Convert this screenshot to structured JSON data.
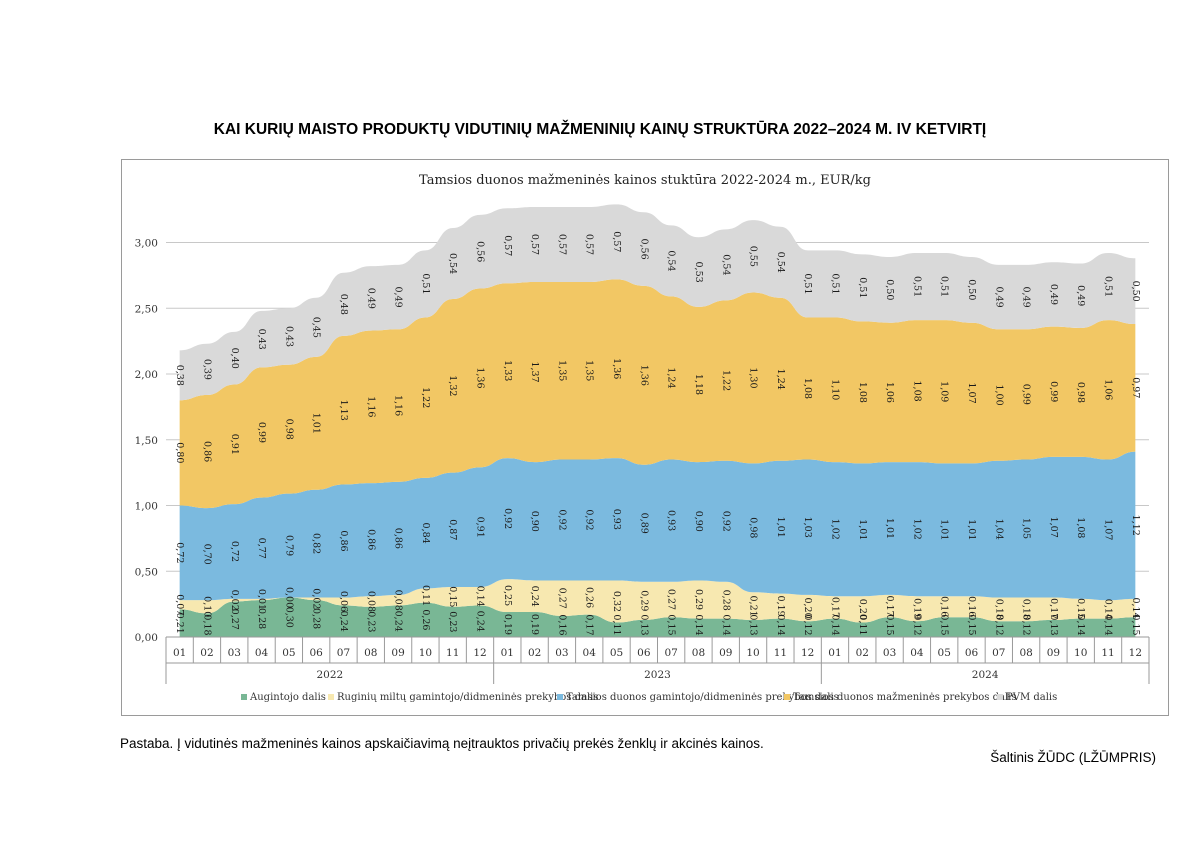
{
  "page": {
    "title": "KAI KURIŲ MAISTO PRODUKTŲ VIDUTINIŲ MAŽMENINIŲ KAINŲ STRUKTŪRA 2022–2024 M. IV KETVIRTĮ",
    "note": "Pastaba. Į vidutinės mažmeninės kainos apskaičiavimą neįtrauktos privačių prekės ženklų ir akcinės kainos.",
    "source": "Šaltinis ŽŪDC (LŽŪMPRIS)"
  },
  "chart_data": {
    "type": "area",
    "stacked": true,
    "title": "Tamsios duonos mažmeninės  kainos stuktūra  2022-2024 m., EUR/kg",
    "xlabel": "",
    "ylabel": "",
    "ylim": [
      0,
      3.3
    ],
    "y_ticks": [
      "0,00",
      "0,50",
      "1,00",
      "1,50",
      "2,00",
      "2,50",
      "3,00"
    ],
    "grid": true,
    "legend_position": "bottom",
    "months": [
      "01",
      "02",
      "03",
      "04",
      "05",
      "06",
      "07",
      "08",
      "09",
      "10",
      "11",
      "12",
      "01",
      "02",
      "03",
      "04",
      "05",
      "06",
      "07",
      "08",
      "09",
      "10",
      "11",
      "12",
      "01",
      "02",
      "03",
      "04",
      "05",
      "06",
      "07",
      "08",
      "09",
      "10",
      "11",
      "12"
    ],
    "years": [
      "2022",
      "2023",
      "2024"
    ],
    "series": [
      {
        "name": "Augintojo dalis",
        "color": "#79b795",
        "values": [
          0.21,
          0.18,
          0.27,
          0.28,
          0.3,
          0.28,
          0.24,
          0.23,
          0.24,
          0.26,
          0.23,
          0.24,
          0.19,
          0.19,
          0.16,
          0.17,
          0.11,
          0.13,
          0.15,
          0.14,
          0.14,
          0.13,
          0.14,
          0.12,
          0.14,
          0.11,
          0.15,
          0.12,
          0.15,
          0.15,
          0.12,
          0.12,
          0.13,
          0.14,
          0.14,
          0.15
        ],
        "labels": [
          "0,21",
          "0,18",
          "0,27",
          "0,28",
          "0,30",
          "0,28",
          "0,24",
          "0,23",
          "0,24",
          "0,26",
          "0,23",
          "0,24",
          "0,19",
          "0,19",
          "0,16",
          "0,17",
          "0,11",
          "0,13",
          "0,15",
          "0,14",
          "0,14",
          "0,13",
          "0,14",
          "0,12",
          "0,14",
          "0,11",
          "0,15",
          "0,12",
          "0,15",
          "0,15",
          "0,12",
          "0,12",
          "0,13",
          "0,14",
          "0,14",
          "0,15"
        ]
      },
      {
        "name": "Ruginių miltų gamintojo/didmeninės  prekybos dalis",
        "color": "#f7e8b0",
        "values": [
          0.07,
          0.1,
          0.02,
          0.01,
          0.0,
          0.02,
          0.06,
          0.08,
          0.08,
          0.11,
          0.15,
          0.14,
          0.25,
          0.24,
          0.27,
          0.26,
          0.32,
          0.29,
          0.27,
          0.29,
          0.28,
          0.21,
          0.19,
          0.2,
          0.17,
          0.2,
          0.17,
          0.19,
          0.16,
          0.16,
          0.18,
          0.18,
          0.17,
          0.15,
          0.14,
          0.14
        ],
        "labels": [
          "0,07",
          "0,10",
          "0,02",
          "0,01",
          "0,00",
          "0,02",
          "0,06",
          "0,08",
          "0,08",
          "0,11",
          "0,15",
          "0,14",
          "0,25",
          "0,24",
          "0,27",
          "0,26",
          "0,32",
          "0,29",
          "0,27",
          "0,29",
          "0,28",
          "0,21",
          "0,19",
          "0,20",
          "0,17",
          "0,20",
          "0,17",
          "0,19",
          "0,16",
          "0,16",
          "0,18",
          "0,18",
          "0,17",
          "0,15",
          "0,14",
          "0,14"
        ]
      },
      {
        "name": "Tamsios duonos gamintojo/didmeninės prekybos dalis",
        "color": "#7bbadf",
        "values": [
          0.72,
          0.7,
          0.72,
          0.77,
          0.79,
          0.82,
          0.86,
          0.86,
          0.86,
          0.84,
          0.87,
          0.91,
          0.92,
          0.9,
          0.92,
          0.92,
          0.93,
          0.89,
          0.93,
          0.9,
          0.92,
          0.98,
          1.01,
          1.03,
          1.02,
          1.01,
          1.01,
          1.02,
          1.01,
          1.01,
          1.04,
          1.05,
          1.07,
          1.08,
          1.07,
          1.12
        ],
        "labels": [
          "0,72",
          "0,70",
          "0,72",
          "0,77",
          "0,79",
          "0,82",
          "0,86",
          "0,86",
          "0,86",
          "0,84",
          "0,87",
          "0,91",
          "0,92",
          "0,90",
          "0,92",
          "0,92",
          "0,93",
          "0,89",
          "0,93",
          "0,90",
          "0,92",
          "0,98",
          "1,01",
          "1,03",
          "1,02",
          "1,01",
          "1,01",
          "1,02",
          "1,01",
          "1,01",
          "1,04",
          "1,05",
          "1,07",
          "1,08",
          "1,07",
          "1,12"
        ]
      },
      {
        "name": "Tamsios duonos mažmeninės prekybos dalis",
        "color": "#f2c764",
        "values": [
          0.8,
          0.86,
          0.91,
          0.99,
          0.98,
          1.01,
          1.13,
          1.16,
          1.16,
          1.22,
          1.32,
          1.36,
          1.33,
          1.37,
          1.35,
          1.35,
          1.36,
          1.36,
          1.24,
          1.18,
          1.22,
          1.3,
          1.24,
          1.08,
          1.1,
          1.08,
          1.06,
          1.08,
          1.09,
          1.07,
          1.0,
          0.99,
          0.99,
          0.98,
          1.06,
          0.97
        ],
        "labels": [
          "0,80",
          "0,86",
          "0,91",
          "0,99",
          "0,98",
          "1,01",
          "1,13",
          "1,16",
          "1,16",
          "1,22",
          "1,32",
          "1,36",
          "1,33",
          "1,37",
          "1,35",
          "1,35",
          "1,36",
          "1,36",
          "1,24",
          "1,18",
          "1,22",
          "1,30",
          "1,24",
          "1,08",
          "1,10",
          "1,08",
          "1,06",
          "1,08",
          "1,09",
          "1,07",
          "1,00",
          "0,99",
          "0,99",
          "0,98",
          "1,06",
          "0,97"
        ]
      },
      {
        "name": "PVM dalis",
        "color": "#d9d9d9",
        "values": [
          0.38,
          0.39,
          0.4,
          0.43,
          0.43,
          0.45,
          0.48,
          0.49,
          0.49,
          0.51,
          0.54,
          0.56,
          0.57,
          0.57,
          0.57,
          0.57,
          0.57,
          0.56,
          0.54,
          0.53,
          0.54,
          0.55,
          0.54,
          0.51,
          0.51,
          0.51,
          0.5,
          0.51,
          0.51,
          0.5,
          0.49,
          0.49,
          0.49,
          0.49,
          0.51,
          0.5
        ],
        "labels": [
          "0,38",
          "0,39",
          "0,40",
          "0,43",
          "0,43",
          "0,45",
          "0,48",
          "0,49",
          "0,49",
          "0,51",
          "0,54",
          "0,56",
          "0,57",
          "0,57",
          "0,57",
          "0,57",
          "0,57",
          "0,56",
          "0,54",
          "0,53",
          "0,54",
          "0,55",
          "0,54",
          "0,51",
          "0,51",
          "0,51",
          "0,50",
          "0,51",
          "0,51",
          "0,50",
          "0,49",
          "0,49",
          "0,49",
          "0,49",
          "0,51",
          "0,50"
        ]
      }
    ]
  }
}
